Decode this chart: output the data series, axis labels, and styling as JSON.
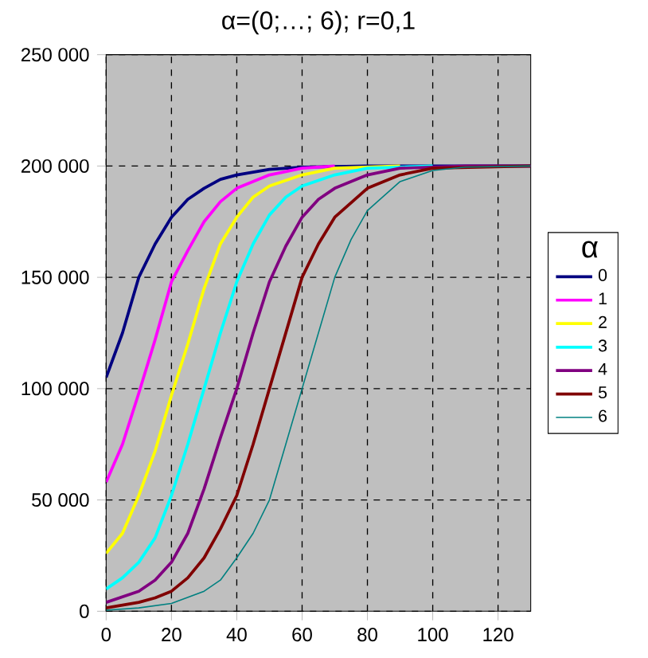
{
  "chart_data": {
    "type": "line",
    "title": "α=(0;…; 6); r=0,1",
    "legend_title": "α",
    "legend": "right",
    "grid": true,
    "marker": "none",
    "line_style": "solid",
    "xlim": [
      0,
      130
    ],
    "xticks": [
      0,
      20,
      40,
      60,
      80,
      100,
      120
    ],
    "ylim": [
      0,
      250000
    ],
    "yticks": [
      {
        "value": 0,
        "label": "0"
      },
      {
        "value": 50000,
        "label": "50 000"
      },
      {
        "value": 100000,
        "label": "100 000"
      },
      {
        "value": 150000,
        "label": "150 000"
      },
      {
        "value": 200000,
        "label": "200 000"
      },
      {
        "value": 250000,
        "label": "250 000"
      }
    ],
    "series": [
      {
        "name": "0",
        "color": "#000080",
        "x": [
          0,
          5,
          10,
          15,
          20,
          25,
          30,
          35,
          40,
          50,
          60,
          80,
          130
        ],
        "values": [
          105000,
          125000,
          150000,
          165000,
          177000,
          185000,
          190000,
          194000,
          196000,
          198500,
          199500,
          200000,
          200000
        ]
      },
      {
        "name": "1",
        "color": "#ff00ff",
        "x": [
          0,
          5,
          10,
          15,
          20,
          25,
          30,
          35,
          40,
          50,
          60,
          70
        ],
        "values": [
          58000,
          75000,
          98000,
          122000,
          148000,
          162000,
          175000,
          184000,
          190000,
          196000,
          199000,
          200000
        ]
      },
      {
        "name": "2",
        "color": "#ffff00",
        "x": [
          0,
          5,
          10,
          15,
          20,
          25,
          30,
          35,
          40,
          45,
          50,
          60,
          70,
          90
        ],
        "values": [
          26000,
          35000,
          52000,
          72000,
          97000,
          120000,
          145000,
          165000,
          177000,
          186000,
          191000,
          196000,
          199000,
          200000
        ]
      },
      {
        "name": "3",
        "color": "#00ffff",
        "x": [
          0,
          5,
          10,
          15,
          20,
          25,
          30,
          35,
          40,
          45,
          50,
          55,
          60,
          70,
          80,
          100
        ],
        "values": [
          10000,
          15000,
          22000,
          33000,
          52000,
          75000,
          100000,
          125000,
          148000,
          165000,
          178000,
          186000,
          191000,
          196000,
          199000,
          200000
        ]
      },
      {
        "name": "4",
        "color": "#800080",
        "x": [
          0,
          10,
          15,
          20,
          25,
          30,
          35,
          40,
          45,
          50,
          55,
          60,
          65,
          70,
          80,
          90,
          110,
          130
        ],
        "values": [
          4000,
          9000,
          14000,
          22000,
          35000,
          55000,
          78000,
          100000,
          125000,
          148000,
          164000,
          177000,
          185000,
          190000,
          196000,
          199000,
          200000,
          200000
        ]
      },
      {
        "name": "5",
        "color": "#800000",
        "x": [
          0,
          10,
          15,
          20,
          25,
          30,
          35,
          40,
          45,
          50,
          55,
          60,
          65,
          70,
          80,
          90,
          100,
          130
        ],
        "values": [
          1500,
          4000,
          6000,
          9000,
          15000,
          24000,
          37000,
          52000,
          75000,
          100000,
          125000,
          150000,
          165000,
          177000,
          190000,
          196000,
          199000,
          200000
        ]
      },
      {
        "name": "6",
        "color": "#008080",
        "x": [
          0,
          10,
          20,
          30,
          35,
          40,
          45,
          50,
          55,
          60,
          65,
          70,
          75,
          80,
          90,
          100,
          110,
          130
        ],
        "values": [
          500,
          1500,
          3500,
          9000,
          14000,
          24000,
          35000,
          50000,
          75000,
          100000,
          125000,
          150000,
          167000,
          180000,
          193000,
          198000,
          199500,
          200000
        ]
      }
    ]
  }
}
